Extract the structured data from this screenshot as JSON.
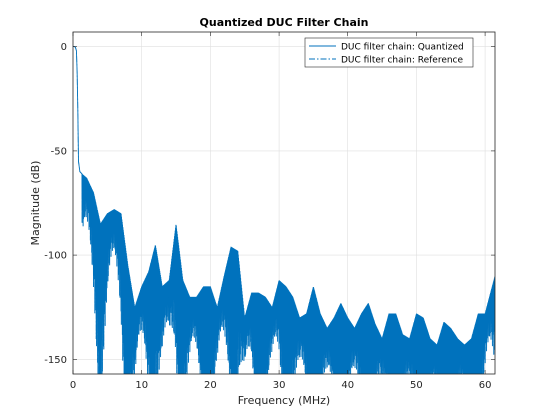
{
  "chart_data": {
    "type": "line",
    "title": "Quantized DUC Filter Chain",
    "xlabel": "Frequency (MHz)",
    "ylabel": "Magnitude (dB)",
    "xlim": [
      0,
      61.44
    ],
    "ylim": [
      -157,
      7
    ],
    "xticks": [
      0,
      10,
      20,
      30,
      40,
      50,
      60
    ],
    "yticks": [
      0,
      -50,
      -100,
      -150
    ],
    "grid": true,
    "legend_position": "top-right",
    "series_color": "#0072bd",
    "series": [
      {
        "name": "DUC filter chain: Quantized",
        "style": "solid"
      },
      {
        "name": "DUC filter chain: Reference",
        "style": "dash-dot"
      }
    ],
    "passband": {
      "x": [
        0,
        0.2,
        0.35,
        0.5,
        0.6,
        0.7,
        0.8,
        1.0,
        1.3
      ],
      "y": [
        0,
        0,
        -0.3,
        -2,
        -12,
        -30,
        -55,
        -60,
        -61
      ]
    },
    "envelope": {
      "x": [
        1.3,
        2,
        3,
        4,
        5,
        6,
        7,
        8,
        9,
        10,
        11,
        12,
        13,
        14,
        15,
        16,
        17,
        18,
        19,
        20,
        21,
        22,
        23,
        24,
        25,
        26,
        27,
        28,
        29,
        30,
        31,
        32,
        33,
        34,
        35,
        36,
        37,
        38,
        39,
        40,
        41,
        42,
        43,
        44,
        45,
        46,
        47,
        48,
        49,
        50,
        51,
        52,
        53,
        54,
        55,
        56,
        57,
        58,
        59,
        60,
        61.44
      ],
      "y": [
        -61,
        -63,
        -70,
        -85,
        -80,
        -78,
        -80,
        -105,
        -125,
        -115,
        -108,
        -95,
        -115,
        -112,
        -85,
        -112,
        -120,
        -120,
        -115,
        -115,
        -125,
        -110,
        -96,
        -98,
        -130,
        -118,
        -118,
        -120,
        -125,
        -112,
        -115,
        -120,
        -130,
        -128,
        -115,
        -128,
        -135,
        -130,
        -123,
        -130,
        -135,
        -128,
        -123,
        -133,
        -140,
        -128,
        -128,
        -138,
        -140,
        -128,
        -130,
        -140,
        -143,
        -132,
        -135,
        -140,
        -143,
        -140,
        -128,
        -128,
        -110
      ]
    }
  }
}
